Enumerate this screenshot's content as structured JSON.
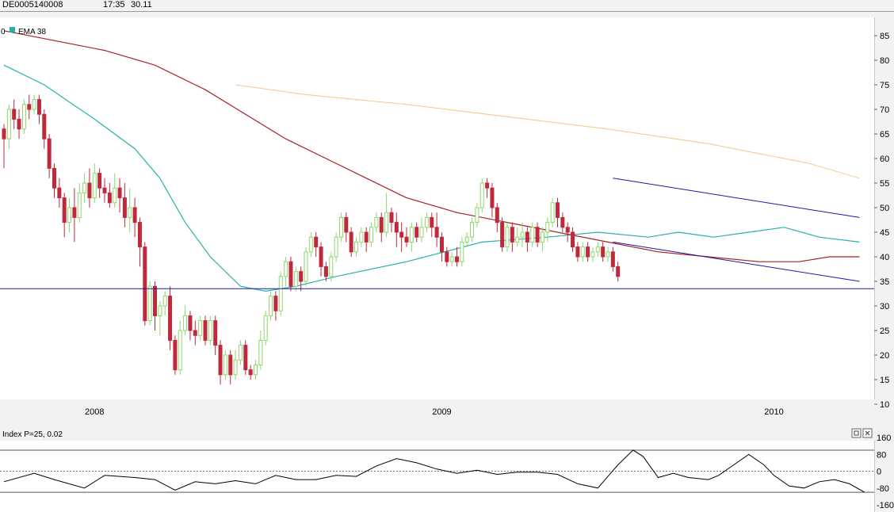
{
  "header": {
    "symbol": "DE0005140008",
    "time": "17:35",
    "price": "30.11"
  },
  "legend": {
    "prefix": "0",
    "label": "EMA 38",
    "swatch_color": "#20b0b0"
  },
  "indicator": {
    "label": "Index P=25, 0.02",
    "y_ticks": [
      "160",
      "80",
      "0",
      "-80",
      "-160"
    ],
    "upper_level": 100,
    "lower_level": -100,
    "buttons": [
      {
        "name": "restore-icon",
        "glyph": "□"
      },
      {
        "name": "close-icon",
        "glyph": "×"
      }
    ]
  },
  "colors": {
    "up": "#8fd66a",
    "down": "#c0283c",
    "ema_teal": "#27b3a8",
    "ema_red": "#a81e28",
    "ema_orange": "#f5c88c",
    "channel": "#1a1aa6",
    "support": "#1a1aa6"
  },
  "chart_data": [
    {
      "type": "candlestick",
      "title": "",
      "ylim": [
        10,
        88
      ],
      "y_ticks": [
        85,
        80,
        75,
        70,
        65,
        60,
        55,
        50,
        45,
        40,
        35,
        30,
        25,
        20,
        15,
        10
      ],
      "x_labels": [
        {
          "label": "2008",
          "at": 18
        },
        {
          "label": "2009",
          "at": 87
        },
        {
          "label": "2010",
          "at": 153
        }
      ],
      "candles": [
        [
          66,
          64,
          67,
          58
        ],
        [
          64,
          70,
          71,
          62
        ],
        [
          70,
          68,
          72,
          66
        ],
        [
          68,
          66,
          70,
          64
        ],
        [
          66,
          71,
          72,
          65
        ],
        [
          71,
          70,
          73,
          68
        ],
        [
          70,
          72,
          73,
          69
        ],
        [
          72,
          69,
          73,
          67
        ],
        [
          69,
          64,
          70,
          62
        ],
        [
          64,
          58,
          65,
          56
        ],
        [
          58,
          54,
          59,
          52
        ],
        [
          54,
          52,
          56,
          50
        ],
        [
          52,
          47,
          53,
          44
        ],
        [
          47,
          50,
          52,
          45
        ],
        [
          50,
          48,
          54,
          43
        ],
        [
          48,
          53,
          55,
          47
        ],
        [
          53,
          55,
          57,
          51
        ],
        [
          55,
          52,
          58,
          50
        ],
        [
          52,
          57,
          59,
          51
        ],
        [
          57,
          54,
          58,
          52
        ],
        [
          54,
          53,
          56,
          51
        ],
        [
          53,
          51,
          55,
          50
        ],
        [
          51,
          54,
          57,
          50
        ],
        [
          54,
          52,
          56,
          49
        ],
        [
          52,
          48,
          55,
          46
        ],
        [
          48,
          50,
          54,
          45
        ],
        [
          50,
          47,
          52,
          44
        ],
        [
          47,
          42,
          48,
          38
        ],
        [
          42,
          27,
          43,
          26
        ],
        [
          27,
          34,
          35,
          26
        ],
        [
          34,
          28,
          35,
          25
        ],
        [
          28,
          30,
          31,
          24
        ],
        [
          30,
          32,
          33,
          28
        ],
        [
          32,
          23,
          34,
          21
        ],
        [
          23,
          17,
          24,
          16
        ],
        [
          17,
          25,
          27,
          16
        ],
        [
          25,
          28,
          30,
          24
        ],
        [
          28,
          25,
          29,
          23
        ],
        [
          25,
          24,
          27,
          22
        ],
        [
          24,
          27,
          28,
          23
        ],
        [
          27,
          23,
          28,
          22
        ],
        [
          23,
          27,
          28,
          22
        ],
        [
          27,
          22,
          28,
          20
        ],
        [
          22,
          16,
          23,
          14
        ],
        [
          16,
          20,
          21,
          15
        ],
        [
          20,
          16,
          21,
          14
        ],
        [
          16,
          19,
          21,
          15
        ],
        [
          19,
          22,
          23,
          18
        ],
        [
          22,
          17,
          23,
          16
        ],
        [
          17,
          16,
          18,
          15
        ],
        [
          16,
          18,
          19,
          15
        ],
        [
          18,
          23,
          25,
          17
        ],
        [
          23,
          28,
          29,
          22
        ],
        [
          28,
          32,
          33,
          27
        ],
        [
          32,
          29,
          33,
          27
        ],
        [
          29,
          36,
          37,
          28
        ],
        [
          36,
          39,
          40,
          34
        ],
        [
          39,
          34,
          40,
          33
        ],
        [
          34,
          37,
          38,
          33
        ],
        [
          37,
          35,
          38,
          33
        ],
        [
          35,
          41,
          42,
          34
        ],
        [
          41,
          44,
          45,
          40
        ],
        [
          44,
          42,
          45,
          40
        ],
        [
          42,
          38,
          43,
          36
        ],
        [
          38,
          36,
          39,
          35
        ],
        [
          36,
          40,
          41,
          35
        ],
        [
          40,
          44,
          45,
          39
        ],
        [
          44,
          48,
          49,
          43
        ],
        [
          48,
          45,
          49,
          43
        ],
        [
          45,
          41,
          46,
          40
        ],
        [
          41,
          43,
          44,
          40
        ],
        [
          43,
          45,
          46,
          42
        ],
        [
          45,
          43,
          46,
          41
        ],
        [
          43,
          46,
          47,
          42
        ],
        [
          46,
          48,
          49,
          45
        ],
        [
          48,
          45,
          49,
          43
        ],
        [
          45,
          49,
          53,
          44
        ],
        [
          49,
          47,
          50,
          45
        ],
        [
          47,
          45,
          49,
          42
        ],
        [
          45,
          44,
          47,
          41
        ],
        [
          44,
          43,
          46,
          42
        ],
        [
          43,
          46,
          47,
          41
        ],
        [
          46,
          44,
          47,
          43
        ],
        [
          44,
          46,
          48,
          43
        ],
        [
          46,
          48,
          49,
          45
        ],
        [
          48,
          46,
          49,
          44
        ],
        [
          46,
          44,
          49,
          42
        ],
        [
          44,
          41,
          45,
          39
        ],
        [
          41,
          39,
          42,
          38
        ],
        [
          39,
          40,
          41,
          38
        ],
        [
          40,
          39,
          42,
          38
        ],
        [
          39,
          43,
          44,
          38
        ],
        [
          43,
          44,
          45,
          42
        ],
        [
          44,
          47,
          48,
          43
        ],
        [
          47,
          50,
          51,
          46
        ],
        [
          50,
          55,
          56,
          49
        ],
        [
          55,
          54,
          56,
          52
        ],
        [
          54,
          50,
          55,
          48
        ],
        [
          50,
          47,
          51,
          45
        ],
        [
          47,
          42,
          48,
          41
        ],
        [
          42,
          46,
          47,
          41
        ],
        [
          46,
          43,
          47,
          41
        ],
        [
          43,
          44,
          46,
          42
        ],
        [
          44,
          45,
          47,
          42
        ],
        [
          45,
          43,
          46,
          41
        ],
        [
          43,
          46,
          47,
          42
        ],
        [
          46,
          43,
          47,
          42
        ],
        [
          43,
          45,
          46,
          41
        ],
        [
          45,
          47,
          48,
          43
        ],
        [
          47,
          51,
          52,
          46
        ],
        [
          51,
          48,
          52,
          46
        ],
        [
          48,
          46,
          49,
          45
        ],
        [
          46,
          45,
          47,
          43
        ],
        [
          45,
          42,
          46,
          41
        ],
        [
          42,
          40,
          43,
          39
        ],
        [
          40,
          42,
          43,
          39
        ],
        [
          42,
          40,
          43,
          39
        ],
        [
          40,
          41,
          42,
          39
        ],
        [
          41,
          42,
          43,
          40
        ],
        [
          42,
          40,
          43,
          39
        ],
        [
          40,
          41,
          42,
          39
        ],
        [
          41,
          38,
          42,
          37
        ],
        [
          38,
          36,
          39,
          35
        ]
      ],
      "ema_teal": [
        [
          0,
          79
        ],
        [
          8,
          75
        ],
        [
          18,
          68
        ],
        [
          26,
          62
        ],
        [
          31,
          56
        ],
        [
          36,
          47
        ],
        [
          41,
          40
        ],
        [
          47,
          34
        ],
        [
          52,
          33
        ],
        [
          58,
          34
        ],
        [
          66,
          36
        ],
        [
          80,
          39
        ],
        [
          95,
          43
        ],
        [
          108,
          44
        ],
        [
          118,
          45
        ],
        [
          128,
          44
        ],
        [
          134,
          45
        ],
        [
          141,
          44
        ],
        [
          148,
          45
        ],
        [
          155,
          46
        ],
        [
          162,
          44
        ],
        [
          170,
          43
        ]
      ],
      "ema_red": [
        [
          0,
          86
        ],
        [
          10,
          84
        ],
        [
          20,
          82
        ],
        [
          30,
          79
        ],
        [
          40,
          74
        ],
        [
          48,
          69
        ],
        [
          56,
          64
        ],
        [
          64,
          60
        ],
        [
          72,
          56
        ],
        [
          80,
          52
        ],
        [
          90,
          49
        ],
        [
          100,
          47
        ],
        [
          110,
          45
        ],
        [
          120,
          43
        ],
        [
          130,
          41
        ],
        [
          140,
          40
        ],
        [
          150,
          39
        ],
        [
          158,
          39
        ],
        [
          164,
          40
        ],
        [
          170,
          40
        ]
      ],
      "ema_orange": [
        [
          46,
          75
        ],
        [
          60,
          73
        ],
        [
          80,
          71
        ],
        [
          100,
          68.5
        ],
        [
          120,
          66
        ],
        [
          140,
          63
        ],
        [
          160,
          59
        ],
        [
          170,
          56
        ]
      ],
      "channel_upper": [
        [
          121,
          56
        ],
        [
          170,
          48
        ]
      ],
      "channel_lower": [
        [
          121,
          43
        ],
        [
          170,
          35
        ]
      ],
      "support_level": 33.5
    },
    {
      "type": "line",
      "title": "Index P=25, 0.02",
      "ylim": [
        -160,
        160
      ],
      "y_ticks": [
        160,
        80,
        0,
        -80,
        -160
      ],
      "levels": [
        100,
        -100,
        0
      ],
      "x": [
        0,
        6,
        10,
        16,
        20,
        26,
        30,
        34,
        38,
        42,
        46,
        50,
        54,
        58,
        62,
        66,
        70,
        74,
        78,
        82,
        86,
        90,
        94,
        98,
        102,
        106,
        110,
        114,
        118,
        122,
        125,
        127,
        130,
        133,
        136,
        140,
        142,
        145,
        148,
        151,
        153,
        156,
        159,
        162,
        165,
        168,
        171
      ],
      "values": [
        -50,
        -10,
        -40,
        -80,
        -20,
        -30,
        -40,
        -90,
        -50,
        -60,
        -45,
        -60,
        -20,
        -40,
        -40,
        -20,
        -25,
        25,
        60,
        40,
        10,
        -10,
        5,
        -15,
        -5,
        -5,
        -15,
        -60,
        -80,
        30,
        100,
        70,
        -30,
        -10,
        -30,
        -40,
        -20,
        30,
        80,
        30,
        -20,
        -70,
        -80,
        -50,
        -40,
        -60,
        -100
      ]
    }
  ]
}
